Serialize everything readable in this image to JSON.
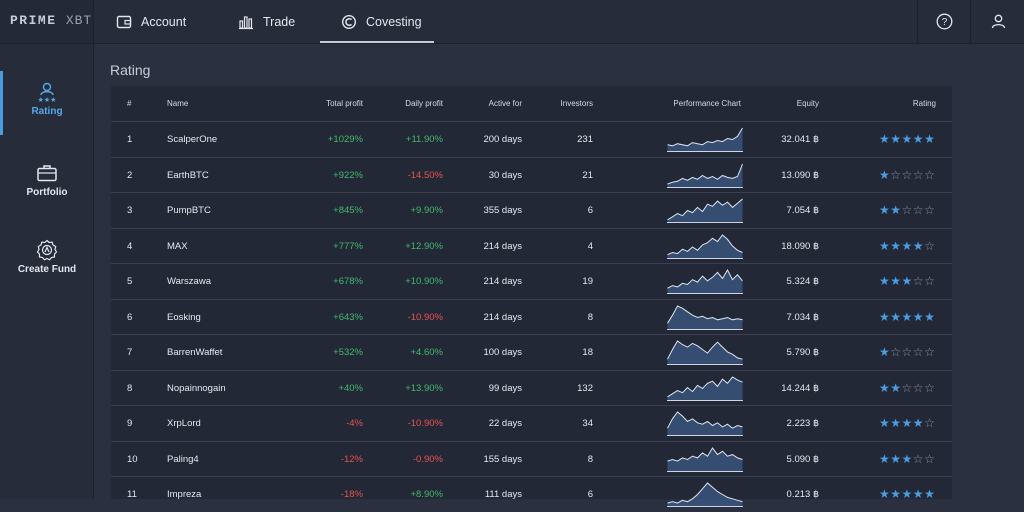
{
  "brand": {
    "name_a": "PRIME",
    "name_b": "XBT"
  },
  "tabs": [
    {
      "label": "Account",
      "icon": "wallet-icon"
    },
    {
      "label": "Trade",
      "icon": "chart-bars-icon"
    },
    {
      "label": "Covesting",
      "icon": "covesting-icon"
    }
  ],
  "active_tab": "Covesting",
  "top_actions": [
    {
      "icon": "help-icon"
    },
    {
      "icon": "user-icon"
    }
  ],
  "sidebar": {
    "items": [
      {
        "label": "Rating",
        "icon": "rating-icon",
        "active": true
      },
      {
        "label": "Portfolio",
        "icon": "briefcase-icon",
        "active": false
      },
      {
        "label": "Create Fund",
        "icon": "create-fund-icon",
        "active": false
      }
    ]
  },
  "section_title": "Rating",
  "table": {
    "headers": [
      "#",
      "Name",
      "Total profit",
      "Daily profit",
      "Active for",
      "Investors",
      "Performance Chart",
      "Equity",
      "Rating"
    ],
    "colors": {
      "positive": "#45b86a",
      "negative": "#e8534a",
      "star_on": "#4a9de0",
      "star_off": "#8d93a4"
    },
    "rows": [
      {
        "rank": "1",
        "name": "ScalperOne",
        "total_profit": "+1029%",
        "daily_profit": "+11.90%",
        "active_for": "200 days",
        "investors": "231",
        "equity": "32.041 ฿",
        "rating": 5,
        "perf": [
          6,
          5,
          7,
          6,
          5,
          8,
          7,
          6,
          9,
          8,
          10,
          9,
          12,
          11,
          14,
          22
        ]
      },
      {
        "rank": "2",
        "name": "EarthBTC",
        "total_profit": "+922%",
        "daily_profit": "-14.50%",
        "active_for": "30 days",
        "investors": "21",
        "equity": "13.090 ฿",
        "rating": 1,
        "perf": [
          3,
          5,
          6,
          9,
          7,
          10,
          8,
          12,
          9,
          11,
          8,
          12,
          10,
          9,
          11,
          24
        ]
      },
      {
        "rank": "3",
        "name": "PumpBTC",
        "total_profit": "+845%",
        "daily_profit": "+9.90%",
        "active_for": "355 days",
        "investors": "6",
        "equity": "7.054 ฿",
        "rating": 2,
        "perf": [
          2,
          5,
          8,
          6,
          11,
          9,
          14,
          10,
          17,
          15,
          20,
          16,
          19,
          14,
          18,
          22
        ]
      },
      {
        "rank": "4",
        "name": "MAX",
        "total_profit": "+777%",
        "daily_profit": "+12.90%",
        "active_for": "214 days",
        "investors": "4",
        "equity": "18.090 ฿",
        "rating": 4,
        "perf": [
          3,
          5,
          4,
          8,
          6,
          10,
          7,
          12,
          14,
          18,
          15,
          21,
          17,
          11,
          7,
          5
        ]
      },
      {
        "rank": "5",
        "name": "Warszawa",
        "total_profit": "+678%",
        "daily_profit": "+10.90%",
        "active_for": "214 days",
        "investors": "19",
        "equity": "5.324 ฿",
        "rating": 3,
        "perf": [
          4,
          6,
          5,
          8,
          7,
          11,
          9,
          14,
          10,
          13,
          17,
          12,
          19,
          11,
          15,
          10
        ]
      },
      {
        "rank": "6",
        "name": "Eosking",
        "total_profit": "+643%",
        "daily_profit": "-10.90%",
        "active_for": "214 days",
        "investors": "8",
        "equity": "7.034 ฿",
        "rating": 5,
        "perf": [
          5,
          12,
          20,
          18,
          15,
          12,
          10,
          11,
          9,
          10,
          8,
          9,
          10,
          8,
          9,
          8
        ]
      },
      {
        "rank": "7",
        "name": "BarrenWaffet",
        "total_profit": "+532%",
        "daily_profit": "+4.60%",
        "active_for": "100 days",
        "investors": "18",
        "equity": "5.790 ฿",
        "rating": 1,
        "perf": [
          4,
          12,
          19,
          16,
          14,
          17,
          15,
          12,
          9,
          14,
          18,
          14,
          10,
          8,
          5,
          4
        ]
      },
      {
        "rank": "8",
        "name": "Nopainnogain",
        "total_profit": "+40%",
        "daily_profit": "+13.90%",
        "active_for": "99 days",
        "investors": "132",
        "equity": "14.244 ฿",
        "rating": 2,
        "perf": [
          3,
          6,
          9,
          7,
          12,
          8,
          14,
          11,
          16,
          18,
          13,
          20,
          16,
          22,
          19,
          17
        ]
      },
      {
        "rank": "9",
        "name": "XrpLord",
        "total_profit": "-4%",
        "daily_profit": "-10.90%",
        "active_for": "22 days",
        "investors": "34",
        "equity": "2.223 ฿",
        "rating": 4,
        "perf": [
          5,
          12,
          17,
          14,
          10,
          12,
          9,
          8,
          10,
          7,
          9,
          6,
          8,
          5,
          7,
          6
        ]
      },
      {
        "rank": "10",
        "name": "Paling4",
        "total_profit": "-12%",
        "daily_profit": "-0.90%",
        "active_for": "155 days",
        "investors": "8",
        "equity": "5.090 ฿",
        "rating": 3,
        "perf": [
          6,
          7,
          6,
          8,
          7,
          9,
          8,
          11,
          9,
          14,
          10,
          12,
          9,
          10,
          8,
          7
        ]
      },
      {
        "rank": "11",
        "name": "Impreza",
        "total_profit": "-18%",
        "daily_profit": "+8.90%",
        "active_for": "111 days",
        "investors": "6",
        "equity": "0.213 ฿",
        "rating": 5,
        "perf": [
          2,
          3,
          2,
          4,
          3,
          5,
          8,
          12,
          16,
          13,
          10,
          8,
          6,
          5,
          4,
          3
        ]
      }
    ]
  }
}
